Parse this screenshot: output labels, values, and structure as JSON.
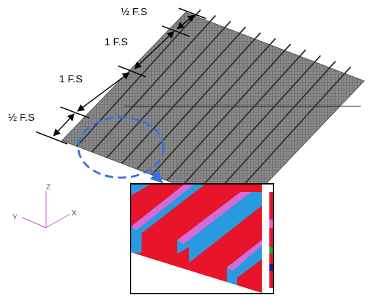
{
  "dimensions": [
    {
      "label": "½ F.S"
    },
    {
      "label": "1 F.S"
    },
    {
      "label": "1 F.S"
    },
    {
      "label": "½ F.S"
    }
  ],
  "axes": {
    "z": "Z",
    "y": "Y",
    "x": "X"
  }
}
